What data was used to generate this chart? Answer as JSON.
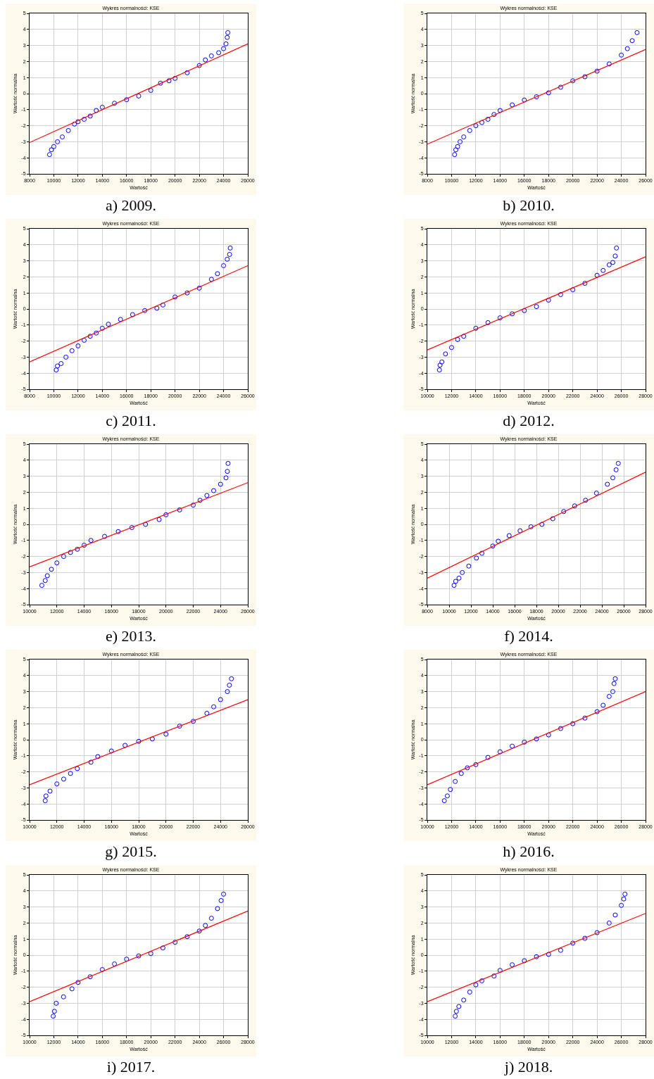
{
  "chart_data": [
    {
      "type": "scatter",
      "title": "Wykres normalności: KSE",
      "xlabel": "Wartość",
      "ylabel": "Wartość normalna",
      "annotations": [
        "a)  2009."
      ],
      "xlim": [
        8000,
        26000
      ],
      "xticks": [
        8000,
        10000,
        12000,
        14000,
        16000,
        18000,
        20000,
        22000,
        24000,
        26000
      ],
      "ylim": [
        -5,
        5
      ],
      "yticks": [
        -5,
        -4,
        -3,
        -2,
        -1,
        0,
        1,
        2,
        3,
        4,
        5
      ],
      "grid": true,
      "series": [
        {
          "marker": "circle",
          "color": "#0000ff",
          "x": [
            9650,
            9800,
            10000,
            10300,
            10700,
            11200,
            11700,
            12000,
            12500,
            13000,
            13500,
            14000,
            15000,
            16000,
            17000,
            18000,
            18800,
            19500,
            20000,
            21000,
            22000,
            22500,
            23000,
            23600,
            24000,
            24200,
            24300,
            24350
          ],
          "values": [
            -3.8,
            -3.5,
            -3.3,
            -3.0,
            -2.7,
            -2.3,
            -1.9,
            -1.75,
            -1.6,
            -1.4,
            -1.05,
            -0.85,
            -0.6,
            -0.38,
            -0.15,
            0.2,
            0.65,
            0.8,
            0.95,
            1.3,
            1.75,
            2.1,
            2.35,
            2.55,
            2.8,
            3.1,
            3.5,
            3.8
          ]
        },
        {
          "type": "line",
          "color": "#ff0000",
          "x": [
            8000,
            26000
          ],
          "values": [
            -3.05,
            3.1
          ]
        }
      ]
    },
    {
      "type": "scatter",
      "title": "Wykres normalności: KSE",
      "xlabel": "Wartość",
      "ylabel": "Wartość normalna",
      "annotations": [
        "b)  2010."
      ],
      "xlim": [
        8000,
        26000
      ],
      "xticks": [
        8000,
        10000,
        12000,
        14000,
        16000,
        18000,
        20000,
        22000,
        24000,
        26000
      ],
      "ylim": [
        -5,
        5
      ],
      "yticks": [
        -5,
        -4,
        -3,
        -2,
        -1,
        0,
        1,
        2,
        3,
        4,
        5
      ],
      "grid": true,
      "series": [
        {
          "marker": "circle",
          "color": "#0000ff",
          "x": [
            10250,
            10350,
            10500,
            10700,
            11000,
            11500,
            12000,
            12500,
            13000,
            13500,
            14000,
            15000,
            16000,
            17000,
            18000,
            19000,
            20000,
            21000,
            22000,
            23000,
            24000,
            24500,
            24900,
            25300
          ],
          "values": [
            -3.8,
            -3.5,
            -3.3,
            -3.0,
            -2.7,
            -2.3,
            -2.0,
            -1.8,
            -1.6,
            -1.3,
            -1.05,
            -0.7,
            -0.4,
            -0.2,
            0.05,
            0.4,
            0.8,
            1.05,
            1.4,
            1.85,
            2.4,
            2.8,
            3.3,
            3.8
          ]
        },
        {
          "type": "line",
          "color": "#ff0000",
          "x": [
            8000,
            26000
          ],
          "values": [
            -3.15,
            2.75
          ]
        }
      ]
    },
    {
      "type": "scatter",
      "title": "Wykres normalności: KSE",
      "xlabel": "Wartość",
      "ylabel": "Wartość normalna",
      "annotations": [
        "c)  2011."
      ],
      "xlim": [
        8000,
        26000
      ],
      "xticks": [
        8000,
        10000,
        12000,
        14000,
        16000,
        18000,
        20000,
        22000,
        24000,
        26000
      ],
      "ylim": [
        -5,
        5
      ],
      "yticks": [
        -5,
        -4,
        -3,
        -2,
        -1,
        0,
        1,
        2,
        3,
        4,
        5
      ],
      "grid": true,
      "series": [
        {
          "marker": "circle",
          "color": "#0000ff",
          "x": [
            10200,
            10300,
            10600,
            11000,
            11500,
            12000,
            12500,
            13000,
            13500,
            14000,
            14500,
            15500,
            16500,
            17500,
            18500,
            19000,
            20000,
            21000,
            22000,
            23000,
            23500,
            24000,
            24300,
            24500,
            24550
          ],
          "values": [
            -3.8,
            -3.55,
            -3.4,
            -3.0,
            -2.6,
            -2.3,
            -1.95,
            -1.7,
            -1.5,
            -1.2,
            -0.95,
            -0.65,
            -0.35,
            -0.1,
            0.05,
            0.25,
            0.75,
            1.0,
            1.3,
            1.85,
            2.2,
            2.7,
            3.1,
            3.4,
            3.8
          ]
        },
        {
          "type": "line",
          "color": "#ff0000",
          "x": [
            8000,
            26000
          ],
          "values": [
            -3.3,
            2.7
          ]
        }
      ]
    },
    {
      "type": "scatter",
      "title": "Wykres normalności: KSE",
      "xlabel": "Wartość",
      "ylabel": "Wartość normalna",
      "annotations": [
        "d)  2012."
      ],
      "xlim": [
        10000,
        28000
      ],
      "xticks": [
        10000,
        12000,
        14000,
        16000,
        18000,
        20000,
        22000,
        24000,
        26000,
        28000
      ],
      "ylim": [
        -5,
        5
      ],
      "yticks": [
        -5,
        -4,
        -3,
        -2,
        -1,
        0,
        1,
        2,
        3,
        4,
        5
      ],
      "grid": true,
      "series": [
        {
          "marker": "circle",
          "color": "#0000ff",
          "x": [
            11000,
            11050,
            11200,
            11500,
            12000,
            12500,
            13000,
            14000,
            15000,
            16000,
            17000,
            18000,
            19000,
            20000,
            21000,
            22000,
            23000,
            24000,
            24500,
            25000,
            25300,
            25500,
            25600
          ],
          "values": [
            -3.8,
            -3.5,
            -3.3,
            -2.8,
            -2.4,
            -1.9,
            -1.7,
            -1.2,
            -0.85,
            -0.55,
            -0.3,
            -0.1,
            0.15,
            0.55,
            0.9,
            1.2,
            1.6,
            2.1,
            2.4,
            2.75,
            2.9,
            3.3,
            3.8
          ]
        },
        {
          "type": "line",
          "color": "#ff0000",
          "x": [
            10000,
            28000
          ],
          "values": [
            -2.55,
            3.25
          ]
        }
      ]
    },
    {
      "type": "scatter",
      "title": "Wykres normalności: KSE",
      "xlabel": "Wartość",
      "ylabel": "Wartość normalna",
      "annotations": [
        "e)  2013."
      ],
      "xlim": [
        10000,
        26000
      ],
      "xticks": [
        10000,
        12000,
        14000,
        16000,
        18000,
        20000,
        22000,
        24000,
        26000
      ],
      "ylim": [
        -5,
        5
      ],
      "yticks": [
        -5,
        -4,
        -3,
        -2,
        -1,
        0,
        1,
        2,
        3,
        4,
        5
      ],
      "grid": true,
      "series": [
        {
          "marker": "circle",
          "color": "#0000ff",
          "x": [
            10900,
            11150,
            11300,
            11600,
            12000,
            12500,
            13000,
            13500,
            14000,
            14500,
            15500,
            16500,
            17500,
            18500,
            19500,
            20000,
            21000,
            22000,
            22500,
            23000,
            23500,
            24000,
            24400,
            24500,
            24550
          ],
          "values": [
            -3.8,
            -3.5,
            -3.2,
            -2.8,
            -2.4,
            -2.0,
            -1.75,
            -1.55,
            -1.3,
            -1.0,
            -0.75,
            -0.45,
            -0.2,
            0.0,
            0.3,
            0.6,
            0.9,
            1.2,
            1.5,
            1.8,
            2.1,
            2.5,
            2.9,
            3.3,
            3.8
          ]
        },
        {
          "type": "line",
          "color": "#ff0000",
          "x": [
            10000,
            26000
          ],
          "values": [
            -2.65,
            2.6
          ]
        }
      ]
    },
    {
      "type": "scatter",
      "title": "Wykres normalności: KSE",
      "xlabel": "Wartość",
      "ylabel": "Wartość normalna",
      "annotations": [
        "f)  2014."
      ],
      "xlim": [
        8000,
        28000
      ],
      "xticks": [
        8000,
        10000,
        12000,
        14000,
        16000,
        18000,
        20000,
        22000,
        24000,
        26000,
        28000
      ],
      "ylim": [
        -5,
        5
      ],
      "yticks": [
        -5,
        -4,
        -3,
        -2,
        -1,
        0,
        1,
        2,
        3,
        4,
        5
      ],
      "grid": true,
      "series": [
        {
          "marker": "circle",
          "color": "#0000ff",
          "x": [
            10450,
            10600,
            10900,
            11200,
            11800,
            12500,
            13000,
            14000,
            14500,
            15500,
            16500,
            17500,
            18500,
            19500,
            20500,
            21500,
            22500,
            23500,
            24500,
            25000,
            25300,
            25500
          ],
          "values": [
            -3.8,
            -3.55,
            -3.35,
            -3.0,
            -2.6,
            -2.1,
            -1.8,
            -1.35,
            -1.05,
            -0.7,
            -0.4,
            -0.15,
            0.0,
            0.35,
            0.8,
            1.15,
            1.5,
            1.95,
            2.5,
            2.9,
            3.4,
            3.8
          ]
        },
        {
          "type": "line",
          "color": "#ff0000",
          "x": [
            8000,
            28000
          ],
          "values": [
            -3.35,
            3.25
          ]
        }
      ]
    },
    {
      "type": "scatter",
      "title": "Wykres normalności: KSE",
      "xlabel": "Wartość",
      "ylabel": "Wartość normalna",
      "annotations": [
        "g)  2015."
      ],
      "xlim": [
        10000,
        26000
      ],
      "xticks": [
        10000,
        12000,
        14000,
        16000,
        18000,
        20000,
        22000,
        24000,
        26000
      ],
      "ylim": [
        -5,
        5
      ],
      "yticks": [
        -5,
        -4,
        -3,
        -2,
        -1,
        0,
        1,
        2,
        3,
        4,
        5
      ],
      "grid": true,
      "series": [
        {
          "marker": "circle",
          "color": "#0000ff",
          "x": [
            11150,
            11200,
            11500,
            12000,
            12500,
            13000,
            13500,
            14500,
            15000,
            16000,
            17000,
            18000,
            19000,
            20000,
            21000,
            22000,
            23000,
            23500,
            24000,
            24500,
            24650,
            24800
          ],
          "values": [
            -3.8,
            -3.5,
            -3.2,
            -2.75,
            -2.45,
            -2.1,
            -1.8,
            -1.4,
            -1.05,
            -0.7,
            -0.35,
            -0.1,
            0.05,
            0.35,
            0.85,
            1.15,
            1.65,
            2.05,
            2.5,
            3.0,
            3.4,
            3.8
          ]
        },
        {
          "type": "line",
          "color": "#ff0000",
          "x": [
            10000,
            26000
          ],
          "values": [
            -2.8,
            2.5
          ]
        }
      ]
    },
    {
      "type": "scatter",
      "title": "Wykres normalności: KSE",
      "xlabel": "Wartość",
      "ylabel": "Wartość normalna",
      "annotations": [
        "h)  2016."
      ],
      "xlim": [
        10000,
        28000
      ],
      "xticks": [
        10000,
        12000,
        14000,
        16000,
        18000,
        20000,
        22000,
        24000,
        26000,
        28000
      ],
      "ylim": [
        -5,
        5
      ],
      "yticks": [
        -5,
        -4,
        -3,
        -2,
        -1,
        0,
        1,
        2,
        3,
        4,
        5
      ],
      "grid": true,
      "series": [
        {
          "marker": "circle",
          "color": "#0000ff",
          "x": [
            11400,
            11650,
            11900,
            12300,
            12800,
            13300,
            14000,
            15000,
            16000,
            17000,
            18000,
            19000,
            20000,
            21000,
            22000,
            23000,
            24000,
            24500,
            25000,
            25300,
            25400,
            25500
          ],
          "values": [
            -3.8,
            -3.5,
            -3.1,
            -2.6,
            -2.1,
            -1.75,
            -1.55,
            -1.1,
            -0.75,
            -0.4,
            -0.15,
            0.05,
            0.3,
            0.7,
            1.0,
            1.35,
            1.75,
            2.15,
            2.7,
            3.0,
            3.5,
            3.8
          ]
        },
        {
          "type": "line",
          "color": "#ff0000",
          "x": [
            10000,
            28000
          ],
          "values": [
            -2.8,
            3.0
          ]
        }
      ]
    },
    {
      "type": "scatter",
      "title": "Wykres normalności: KSE",
      "xlabel": "Wartość",
      "ylabel": "Wartość normalna",
      "annotations": [
        "i)   2017."
      ],
      "xlim": [
        10000,
        28000
      ],
      "xticks": [
        10000,
        12000,
        14000,
        16000,
        18000,
        20000,
        22000,
        24000,
        26000,
        28000
      ],
      "ylim": [
        -5,
        5
      ],
      "yticks": [
        -5,
        -4,
        -3,
        -2,
        -1,
        0,
        1,
        2,
        3,
        4,
        5
      ],
      "grid": true,
      "series": [
        {
          "marker": "circle",
          "color": "#0000ff",
          "x": [
            11950,
            12050,
            12200,
            12800,
            13500,
            14000,
            15000,
            16000,
            17000,
            18000,
            19000,
            20000,
            21000,
            22000,
            23000,
            24000,
            24500,
            25000,
            25500,
            25800,
            26000
          ],
          "values": [
            -3.8,
            -3.5,
            -3.0,
            -2.6,
            -2.1,
            -1.7,
            -1.35,
            -0.9,
            -0.55,
            -0.25,
            -0.05,
            0.1,
            0.45,
            0.8,
            1.15,
            1.5,
            1.85,
            2.3,
            2.9,
            3.4,
            3.8
          ]
        },
        {
          "type": "line",
          "color": "#ff0000",
          "x": [
            10000,
            28000
          ],
          "values": [
            -2.9,
            2.75
          ]
        }
      ]
    },
    {
      "type": "scatter",
      "title": "Wykres normalności: KSE",
      "xlabel": "Wartość",
      "ylabel": "Wartość normalna",
      "annotations": [
        "j)  2018."
      ],
      "xlim": [
        10000,
        28000
      ],
      "xticks": [
        10000,
        12000,
        14000,
        16000,
        18000,
        20000,
        22000,
        24000,
        26000,
        28000
      ],
      "ylim": [
        -5,
        5
      ],
      "yticks": [
        -5,
        -4,
        -3,
        -2,
        -1,
        0,
        1,
        2,
        3,
        4,
        5
      ],
      "grid": true,
      "series": [
        {
          "marker": "circle",
          "color": "#0000ff",
          "x": [
            12300,
            12400,
            12600,
            13000,
            13500,
            14000,
            14500,
            15500,
            16000,
            17000,
            18000,
            19000,
            20000,
            21000,
            22000,
            23000,
            24000,
            25000,
            25500,
            26000,
            26200,
            26300
          ],
          "values": [
            -3.8,
            -3.5,
            -3.2,
            -2.8,
            -2.3,
            -1.85,
            -1.6,
            -1.3,
            -0.95,
            -0.6,
            -0.35,
            -0.1,
            0.05,
            0.3,
            0.75,
            1.05,
            1.4,
            2.0,
            2.5,
            3.1,
            3.5,
            3.8
          ]
        },
        {
          "type": "line",
          "color": "#ff0000",
          "x": [
            10000,
            28000
          ],
          "values": [
            -2.9,
            2.6
          ]
        }
      ]
    }
  ]
}
